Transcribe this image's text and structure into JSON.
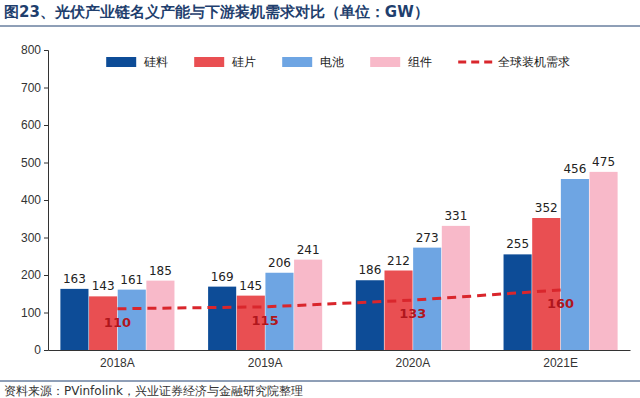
{
  "chart_data": {
    "type": "bar",
    "title": "图23、光伏产业链名义产能与下游装机需求对比（单位：GW）",
    "source": "资料来源：PVinfolink，兴业证券经济与金融研究院整理",
    "categories": [
      "2018A",
      "2019A",
      "2020A",
      "2021E"
    ],
    "series": [
      {
        "name": "硅料",
        "type": "bar",
        "color": "#0d4c97",
        "values": [
          163,
          169,
          186,
          255
        ]
      },
      {
        "name": "硅片",
        "type": "bar",
        "color": "#e94f52",
        "values": [
          143,
          145,
          212,
          352
        ]
      },
      {
        "name": "电池",
        "type": "bar",
        "color": "#6ea5e3",
        "values": [
          161,
          206,
          273,
          456
        ]
      },
      {
        "name": "组件",
        "type": "bar",
        "color": "#f8b9c9",
        "values": [
          185,
          241,
          331,
          475
        ]
      },
      {
        "name": "全球装机需求",
        "type": "line",
        "color": "#d9262c",
        "line_style": "dashed",
        "values": [
          110,
          115,
          133,
          160
        ]
      }
    ],
    "ylim": [
      0,
      800
    ],
    "yticks": [
      0,
      100,
      200,
      300,
      400,
      500,
      600,
      700,
      800
    ],
    "grid": false,
    "legend": "top",
    "data_labels": true
  }
}
